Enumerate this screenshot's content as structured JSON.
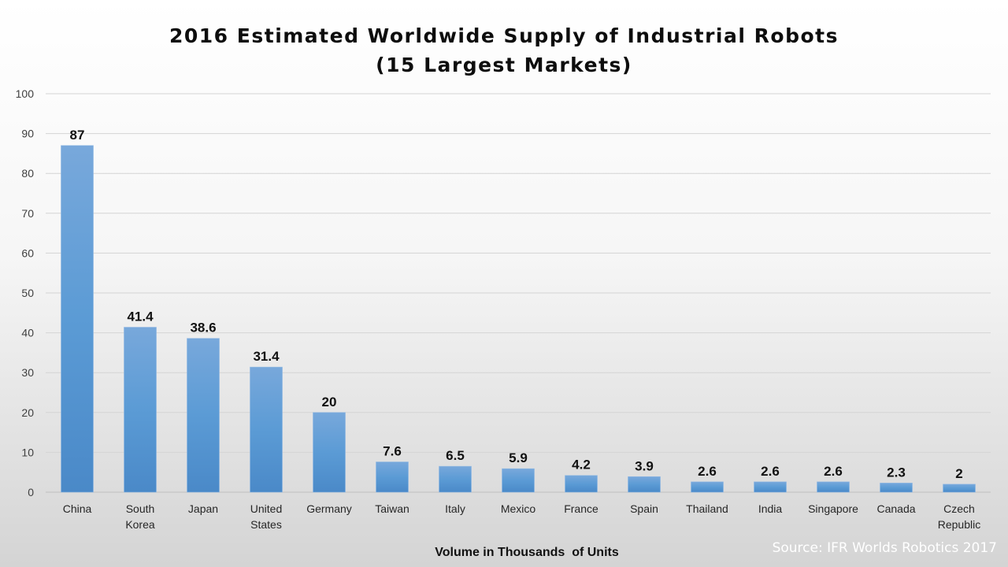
{
  "chart_data": {
    "type": "bar",
    "title_lines": [
      "2016 Estimated Worldwide Supply of Industrial Robots",
      "(15 Largest Markets)"
    ],
    "categories": [
      "China",
      "South Korea",
      "Japan",
      "United States",
      "Germany",
      "Taiwan",
      "Italy",
      "Mexico",
      "France",
      "Spain",
      "Thailand",
      "India",
      "Singapore",
      "Canada",
      "Czech Republic"
    ],
    "category_lines": [
      [
        "China"
      ],
      [
        "South",
        "Korea"
      ],
      [
        "Japan"
      ],
      [
        "United",
        "States"
      ],
      [
        "Germany"
      ],
      [
        "Taiwan"
      ],
      [
        "Italy"
      ],
      [
        "Mexico"
      ],
      [
        "France"
      ],
      [
        "Spain"
      ],
      [
        "Thailand"
      ],
      [
        "India"
      ],
      [
        "Singapore"
      ],
      [
        "Canada"
      ],
      [
        "Czech",
        "Republic"
      ]
    ],
    "values": [
      87,
      41.4,
      38.6,
      31.4,
      20,
      7.6,
      6.5,
      5.9,
      4.2,
      3.9,
      2.6,
      2.6,
      2.6,
      2.3,
      2
    ],
    "data_labels": [
      "87",
      "41.4",
      "38.6",
      "31.4",
      "20",
      "7.6",
      "6.5",
      "5.9",
      "4.2",
      "3.9",
      "2.6",
      "2.6",
      "2.6",
      "2.3",
      "2"
    ],
    "xlabel": "Volume in Thousands  of Units",
    "ylabel": "",
    "ylim": [
      0,
      100
    ],
    "yticks": [
      0,
      10,
      20,
      30,
      40,
      50,
      60,
      70,
      80,
      90,
      100
    ],
    "grid": true,
    "legend": "none",
    "bar_color": "#5b9bd5",
    "source": "Source: IFR Worlds Robotics 2017"
  }
}
